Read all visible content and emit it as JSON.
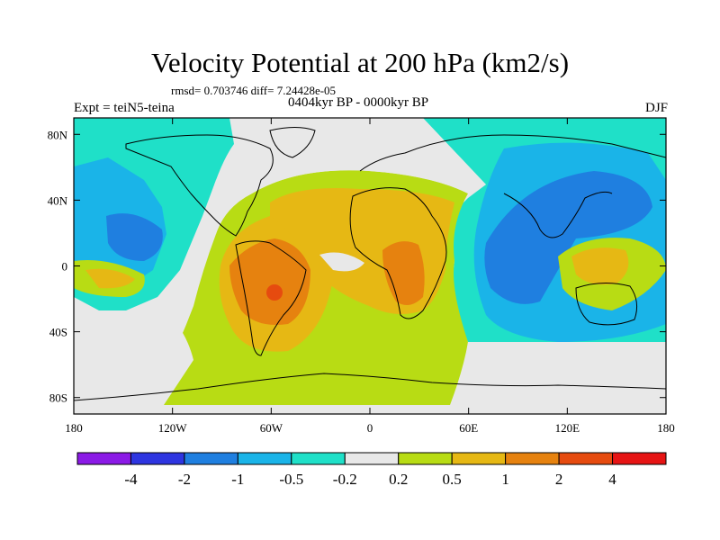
{
  "title": "Velocity Potential at 200 hPa (km2/s)",
  "stats": "rmsd= 0.703746 diff= 7.24428e-05",
  "experiment": "Expt = teiN5-teina",
  "period": "0404kyr BP - 0000kyr BP",
  "season": "DJF",
  "map": {
    "projection": "cylindrical equidistant",
    "lon_range": [
      -180,
      180
    ],
    "lat_range": [
      -90,
      90
    ],
    "lon_ticks": [
      {
        "value": -180,
        "label": "180"
      },
      {
        "value": -120,
        "label": "120W"
      },
      {
        "value": -60,
        "label": "60W"
      },
      {
        "value": 0,
        "label": "0"
      },
      {
        "value": 60,
        "label": "60E"
      },
      {
        "value": 120,
        "label": "120E"
      },
      {
        "value": 180,
        "label": "180"
      }
    ],
    "lat_ticks": [
      {
        "value": 80,
        "label": "80N"
      },
      {
        "value": 40,
        "label": "40N"
      },
      {
        "value": 0,
        "label": "0"
      },
      {
        "value": -40,
        "label": "40S"
      },
      {
        "value": -80,
        "label": "80S"
      }
    ]
  },
  "colorbar": {
    "labels": [
      "-4",
      "-2",
      "-1",
      "-0.5",
      "-0.2",
      "0.2",
      "0.5",
      "1",
      "2",
      "4"
    ],
    "colors": [
      "#8B1AE6",
      "#2E35E0",
      "#1F7FE0",
      "#1AB4E8",
      "#1FE0C8",
      "#E8E8E8",
      "#B8DC14",
      "#E6B814",
      "#E6820F",
      "#E64B0F",
      "#E61414"
    ]
  },
  "colors": {
    "neutral": "#E8E8E8",
    "pos_0_2": "#B8DC14",
    "pos_0_5": "#E6B814",
    "pos_1": "#E6820F",
    "pos_2": "#E64B0F",
    "neg_0_2": "#1FE0C8",
    "neg_0_5": "#1AB4E8",
    "neg_1": "#1F7FE0"
  }
}
